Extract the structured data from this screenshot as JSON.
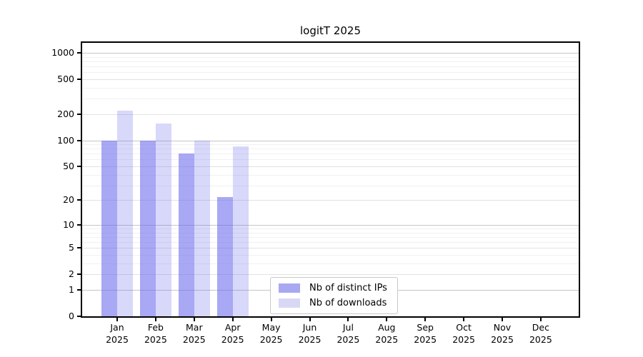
{
  "chart_data": {
    "type": "bar",
    "title": "logitT 2025",
    "year_label": "2025",
    "categories": [
      "Jan",
      "Feb",
      "Mar",
      "Apr",
      "May",
      "Jun",
      "Jul",
      "Aug",
      "Sep",
      "Oct",
      "Nov",
      "Dec"
    ],
    "series": [
      {
        "name": "Nb of distinct IPs",
        "key": "distinct-ips",
        "color": "#a8a8f2",
        "fill": "rgba(100,100,235,0.56)",
        "values": [
          100,
          100,
          70,
          22,
          0,
          0,
          0,
          0,
          0,
          0,
          0,
          0
        ]
      },
      {
        "name": "Nb of downloads",
        "key": "downloads",
        "color": "#d8d8f6",
        "fill": "rgba(100,100,235,0.25)",
        "values": [
          218,
          155,
          100,
          85,
          0,
          0,
          0,
          0,
          0,
          0,
          0,
          0
        ]
      }
    ],
    "yscale": "log1p",
    "ylim": [
      0,
      1300
    ],
    "yticks": [
      0,
      1,
      2,
      5,
      10,
      20,
      50,
      100,
      200,
      500,
      1000
    ],
    "yticks_emphasized": [
      1,
      10,
      100,
      1000
    ],
    "yminor": [
      3,
      4,
      6,
      7,
      8,
      9,
      30,
      40,
      60,
      70,
      80,
      90,
      300,
      400,
      600,
      700,
      800,
      900
    ],
    "grid": true,
    "legend_position": "lower-center"
  },
  "colors": {
    "grid_major": "#c6c6c6",
    "grid_mid": "#e2e2e2",
    "grid_minor": "#f1f1f1",
    "axis": "#000000",
    "background": "#ffffff"
  }
}
